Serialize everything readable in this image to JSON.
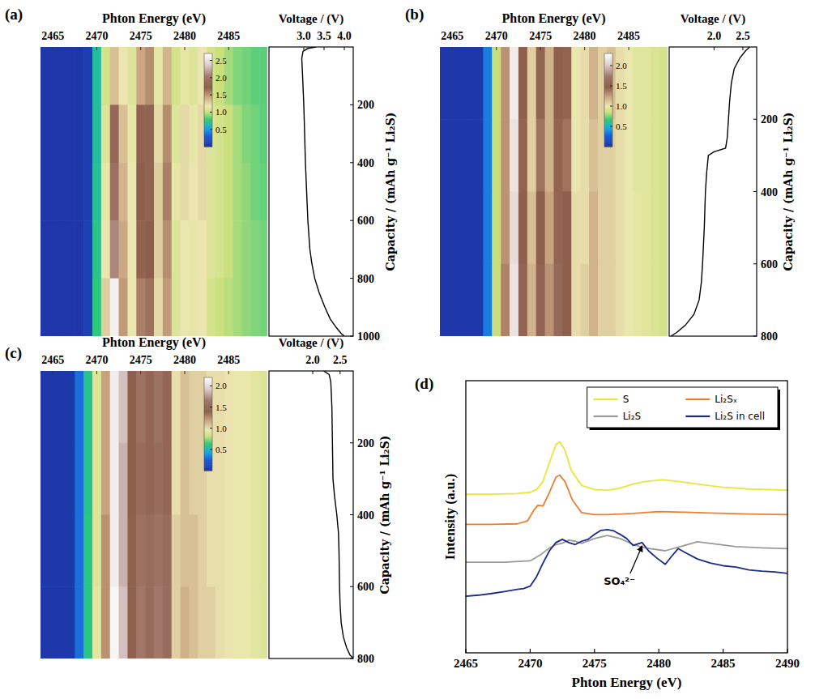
{
  "chart_data": [
    {
      "type": "heatmap",
      "panel_label": "(a)",
      "x_label": "Phton Energy (eV)",
      "x": [
        2464,
        2465,
        2466,
        2467,
        2468,
        2469,
        2470,
        2471,
        2472,
        2473,
        2474,
        2475,
        2476,
        2477,
        2478,
        2479,
        2480,
        2481,
        2482,
        2483,
        2484,
        2485,
        2486,
        2487,
        2488,
        2489
      ],
      "y": [
        100,
        300,
        500,
        700,
        900
      ],
      "cells": [
        [
          0.05,
          0.05,
          0.05,
          0.05,
          0.05,
          0.1,
          0.7,
          1.05,
          1.35,
          1.2,
          1.1,
          1.45,
          1.55,
          1.15,
          1.4,
          1.05,
          1.15,
          1.1,
          1.2,
          1.05,
          1.0,
          0.95,
          0.9,
          0.88,
          0.85,
          0.85
        ],
        [
          0.05,
          0.05,
          0.05,
          0.05,
          0.05,
          0.1,
          0.7,
          1.1,
          1.85,
          1.35,
          1.15,
          1.7,
          1.8,
          1.25,
          1.55,
          1.1,
          1.25,
          1.15,
          1.25,
          1.1,
          1.05,
          1.0,
          0.95,
          0.9,
          0.88,
          0.85
        ],
        [
          0.05,
          0.05,
          0.05,
          0.05,
          0.05,
          0.1,
          0.72,
          1.15,
          1.95,
          1.4,
          1.2,
          1.75,
          1.8,
          1.3,
          1.6,
          1.15,
          1.25,
          1.2,
          1.25,
          1.1,
          1.05,
          1.0,
          0.95,
          0.92,
          0.88,
          0.86
        ],
        [
          0.05,
          0.05,
          0.05,
          0.05,
          0.05,
          0.12,
          0.75,
          1.2,
          2.1,
          1.45,
          1.2,
          1.7,
          1.75,
          1.3,
          1.55,
          1.1,
          1.2,
          1.15,
          1.2,
          1.1,
          1.05,
          1.0,
          0.95,
          0.92,
          0.9,
          0.88
        ],
        [
          0.05,
          0.05,
          0.05,
          0.05,
          0.05,
          0.12,
          0.78,
          1.3,
          2.6,
          1.5,
          1.2,
          1.6,
          1.65,
          1.25,
          1.5,
          1.1,
          1.2,
          1.15,
          1.2,
          1.05,
          1.0,
          0.98,
          0.95,
          0.92,
          0.9,
          0.88
        ]
      ],
      "xlim": [
        2463.6,
        2489.4
      ],
      "xticks": [
        2465,
        2470,
        2475,
        2480,
        2485
      ],
      "ylim": [
        0,
        1000
      ],
      "tick_labels": "x",
      "colorbar_range": [
        0,
        2.7
      ],
      "colorbar_ticks": [
        0.5,
        {
          "value": 1,
          "label": "1.0"
        },
        1.5,
        {
          "value": 2,
          "label": "2.0"
        },
        2.5
      ]
    },
    {
      "type": "line",
      "x_label": "Voltage / (V)",
      "y_label": "Capacity / (mAh g⁻¹ Li₂S)",
      "series": [
        {
          "color": "#000000",
          "x": [
            3.3,
            3.1,
            2.98,
            2.95,
            2.97,
            3.0,
            3.02,
            3.04,
            3.07,
            3.1,
            3.15,
            3.2,
            3.27,
            3.38,
            3.52,
            3.65,
            3.8,
            3.92,
            4.0
          ],
          "values": [
            0,
            5,
            15,
            40,
            100,
            200,
            300,
            400,
            500,
            600,
            700,
            750,
            800,
            850,
            900,
            940,
            970,
            990,
            1000
          ]
        }
      ],
      "xlim": [
        2.14,
        4.22
      ],
      "xticks": [
        {
          "value": 3,
          "label": "3.0"
        },
        3.5,
        {
          "value": 4,
          "label": "4.0"
        }
      ],
      "ylim": [
        0,
        1000
      ],
      "yticks": [
        200,
        400,
        600,
        800,
        1000
      ]
    },
    {
      "type": "heatmap",
      "panel_label": "(b)",
      "x_label": "Phton Energy (eV)",
      "x": [
        2464,
        2465,
        2466,
        2467,
        2468,
        2469,
        2470,
        2471,
        2472,
        2473,
        2474,
        2475,
        2476,
        2477,
        2478,
        2479,
        2480,
        2481,
        2482,
        2483,
        2484,
        2485,
        2486,
        2487,
        2488,
        2489
      ],
      "y": [
        100,
        300,
        500,
        700
      ],
      "cells": [
        [
          0.05,
          0.05,
          0.05,
          0.05,
          0.05,
          0.35,
          0.85,
          1.3,
          2.2,
          1.5,
          1.1,
          1.45,
          1.2,
          1.5,
          1.45,
          1.0,
          1.05,
          1.2,
          1.1,
          1.15,
          1.05,
          1.0,
          0.95,
          0.95,
          0.92,
          0.9
        ],
        [
          0.05,
          0.05,
          0.05,
          0.05,
          0.05,
          0.35,
          0.85,
          1.3,
          2.15,
          1.45,
          1.1,
          1.4,
          1.2,
          1.45,
          1.4,
          1.0,
          1.05,
          1.15,
          1.1,
          1.1,
          1.05,
          1.0,
          0.95,
          0.95,
          0.92,
          0.9
        ],
        [
          0.05,
          0.05,
          0.05,
          0.05,
          0.05,
          0.35,
          0.85,
          1.3,
          2.1,
          1.5,
          1.15,
          1.5,
          1.25,
          1.55,
          1.5,
          1.05,
          1.05,
          1.2,
          1.1,
          1.1,
          1.05,
          1.0,
          0.97,
          0.95,
          0.92,
          0.9
        ],
        [
          0.05,
          0.05,
          0.05,
          0.05,
          0.05,
          0.35,
          0.85,
          1.35,
          2.15,
          1.55,
          1.2,
          1.55,
          1.3,
          1.6,
          1.5,
          1.05,
          1.1,
          1.2,
          1.1,
          1.1,
          1.05,
          1.0,
          0.97,
          0.95,
          0.92,
          0.9
        ]
      ],
      "xlim": [
        2463.6,
        2489.4
      ],
      "xticks": [
        2465,
        2470,
        2475,
        2480,
        2485
      ],
      "ylim": [
        0,
        800
      ],
      "tick_labels": "x",
      "colorbar_range": [
        0,
        2.3
      ],
      "colorbar_ticks": [
        0.5,
        {
          "value": 1,
          "label": "1.0"
        },
        1.5,
        {
          "value": 2,
          "label": "2.0"
        }
      ]
    },
    {
      "type": "line",
      "x_label": "Voltage / (V)",
      "y_label": "Capacity / (mAh g⁻¹ Li₂S)",
      "series": [
        {
          "color": "#000000",
          "x": [
            2.62,
            2.55,
            2.45,
            2.35,
            2.3,
            2.27,
            2.25,
            2.23,
            2.2,
            2.0,
            1.9,
            1.87,
            1.85,
            1.83,
            1.8,
            1.78,
            1.74,
            1.65,
            1.5,
            1.35,
            1.25
          ],
          "values": [
            0,
            10,
            30,
            60,
            100,
            150,
            200,
            250,
            280,
            290,
            300,
            350,
            400,
            500,
            600,
            650,
            700,
            740,
            770,
            790,
            800
          ]
        }
      ],
      "xlim": [
        1.22,
        2.74
      ],
      "xticks": [
        {
          "value": 2,
          "label": "2.0"
        },
        2.5
      ],
      "ylim": [
        0,
        800
      ],
      "yticks": [
        200,
        400,
        600,
        800
      ]
    },
    {
      "type": "heatmap",
      "panel_label": "(c)",
      "x_label": "Phton Energy (eV)",
      "x": [
        2464,
        2465,
        2466,
        2467,
        2468,
        2469,
        2470,
        2471,
        2472,
        2473,
        2474,
        2475,
        2476,
        2477,
        2478,
        2479,
        2480,
        2481,
        2482,
        2483,
        2484,
        2485,
        2486,
        2487,
        2488,
        2489
      ],
      "y": [
        100,
        300,
        500,
        700
      ],
      "cells": [
        [
          0.05,
          0.05,
          0.05,
          0.05,
          0.3,
          0.6,
          0.9,
          1.2,
          2.1,
          1.9,
          1.4,
          1.6,
          1.5,
          1.6,
          1.5,
          1.0,
          1.1,
          1.05,
          1.05,
          1.0,
          1.0,
          0.98,
          0.95,
          0.95,
          0.92,
          0.9
        ],
        [
          0.05,
          0.05,
          0.05,
          0.05,
          0.3,
          0.6,
          0.9,
          1.2,
          2.1,
          1.85,
          1.4,
          1.55,
          1.5,
          1.55,
          1.5,
          1.0,
          1.1,
          1.05,
          1.05,
          1.0,
          1.0,
          0.98,
          0.95,
          0.95,
          0.92,
          0.9
        ],
        [
          0.05,
          0.05,
          0.05,
          0.05,
          0.3,
          0.62,
          0.9,
          1.25,
          2.1,
          1.85,
          1.45,
          1.6,
          1.55,
          1.6,
          1.55,
          1.05,
          1.1,
          1.1,
          1.05,
          1.0,
          1.0,
          0.98,
          0.95,
          0.95,
          0.92,
          0.9
        ],
        [
          0.05,
          0.05,
          0.05,
          0.05,
          0.3,
          0.62,
          0.92,
          1.25,
          2.15,
          1.9,
          1.45,
          1.65,
          1.55,
          1.65,
          1.55,
          1.05,
          1.15,
          1.1,
          1.05,
          1.05,
          1.0,
          0.98,
          0.95,
          0.95,
          0.92,
          0.9
        ]
      ],
      "xlim": [
        2463.6,
        2489.4
      ],
      "xticks": [
        2465,
        2470,
        2475,
        2480,
        2485
      ],
      "ylim": [
        0,
        800
      ],
      "tick_labels": "x",
      "colorbar_range": [
        0,
        2.2
      ],
      "colorbar_ticks": [
        0.5,
        {
          "value": 1,
          "label": "1.0"
        },
        1.5,
        {
          "value": 2,
          "label": "2.0"
        }
      ]
    },
    {
      "type": "line",
      "x_label": "Voltage / (V)",
      "y_label": "Capacity / (mAh g⁻¹ Li₂S)",
      "series": [
        {
          "color": "#000000",
          "x": [
            2.2,
            2.3,
            2.33,
            2.35,
            2.36,
            2.37,
            2.4,
            2.44,
            2.47,
            2.48,
            2.49,
            2.5,
            2.52,
            2.56,
            2.62,
            2.68,
            2.74
          ],
          "values": [
            0,
            10,
            30,
            100,
            200,
            300,
            350,
            400,
            450,
            500,
            600,
            650,
            700,
            740,
            770,
            790,
            800
          ]
        }
      ],
      "xlim": [
        1.2,
        2.74
      ],
      "xticks": [
        {
          "value": 2,
          "label": "2.0"
        },
        2.5
      ],
      "ylim": [
        0,
        800
      ],
      "yticks": [
        200,
        400,
        600,
        800
      ]
    },
    {
      "type": "line",
      "panel_label": "(d)",
      "x_label": "Phton Energy (eV)",
      "y_label": "Intensity (a.u.)",
      "series": [
        {
          "name": "S",
          "color": "#ece33c",
          "x": [
            2465,
            2467,
            2469,
            2470,
            2470.5,
            2471,
            2471.5,
            2472,
            2472.3,
            2472.7,
            2473.2,
            2474,
            2475,
            2476,
            2477,
            2478,
            2479,
            2480.3,
            2481.5,
            2483,
            2485,
            2487,
            2490
          ],
          "values": [
            5.83,
            5.83,
            5.85,
            5.9,
            6.0,
            6.3,
            7.0,
            7.65,
            7.75,
            7.45,
            6.7,
            6.15,
            6.0,
            5.97,
            6.05,
            6.2,
            6.3,
            6.36,
            6.3,
            6.2,
            6.08,
            6.02,
            5.98
          ]
        },
        {
          "name": "Li₂Sₓ",
          "color": "#ef7d2e",
          "x": [
            2465,
            2467,
            2469,
            2469.8,
            2470.3,
            2470.6,
            2471,
            2471.5,
            2472,
            2472.3,
            2472.7,
            2473.3,
            2474,
            2475,
            2476,
            2478,
            2480,
            2482,
            2484,
            2487,
            2490
          ],
          "values": [
            4.72,
            4.72,
            4.74,
            4.85,
            5.25,
            5.42,
            5.4,
            5.9,
            6.45,
            6.53,
            6.3,
            5.6,
            5.15,
            5.08,
            5.08,
            5.12,
            5.19,
            5.17,
            5.14,
            5.1,
            5.08
          ]
        },
        {
          "name": "Li₂S",
          "color": "#9a9a9a",
          "x": [
            2465,
            2468,
            2470,
            2470.8,
            2471.5,
            2472,
            2472.5,
            2473,
            2473.5,
            2474,
            2475,
            2476,
            2477,
            2478,
            2479,
            2480.5,
            2482,
            2483,
            2484,
            2486,
            2488,
            2490
          ],
          "values": [
            3.33,
            3.33,
            3.38,
            3.6,
            3.85,
            3.98,
            4.03,
            4.14,
            4.1,
            4.02,
            4.2,
            4.31,
            4.2,
            3.98,
            3.85,
            3.75,
            3.95,
            4.08,
            4.02,
            3.9,
            3.86,
            3.83
          ]
        },
        {
          "name": "Li₂S in cell",
          "color": "#1c2a8c",
          "x": [
            2465,
            2466,
            2467,
            2468,
            2469,
            2469.5,
            2470,
            2470.5,
            2471,
            2471.5,
            2472,
            2472.5,
            2473,
            2473.5,
            2474,
            2474.5,
            2475,
            2475.5,
            2476,
            2476.5,
            2477,
            2477.5,
            2478,
            2478.7,
            2479.2,
            2479.8,
            2480.5,
            2481,
            2481.5,
            2482,
            2483,
            2484,
            2485,
            2486,
            2487,
            2488,
            2489,
            2490
          ],
          "values": [
            2.08,
            2.12,
            2.18,
            2.25,
            2.33,
            2.36,
            2.45,
            2.8,
            3.3,
            3.75,
            4.05,
            4.17,
            4.05,
            3.98,
            4.1,
            4.17,
            4.35,
            4.5,
            4.53,
            4.48,
            4.35,
            4.2,
            3.95,
            4.05,
            3.75,
            3.5,
            3.25,
            3.55,
            3.83,
            3.7,
            3.45,
            3.3,
            3.2,
            3.15,
            3.05,
            3.0,
            2.97,
            2.92
          ]
        }
      ],
      "xlim": [
        2465,
        2490
      ],
      "xticks": [
        2465,
        2470,
        2475,
        2480,
        2485,
        2490
      ],
      "ylim": [
        0,
        10
      ],
      "tick_labels": "x",
      "legend": "top",
      "annotations": [
        {
          "text": "SO₄²⁻",
          "x": 2478.7,
          "y": 4.05
        }
      ]
    }
  ]
}
